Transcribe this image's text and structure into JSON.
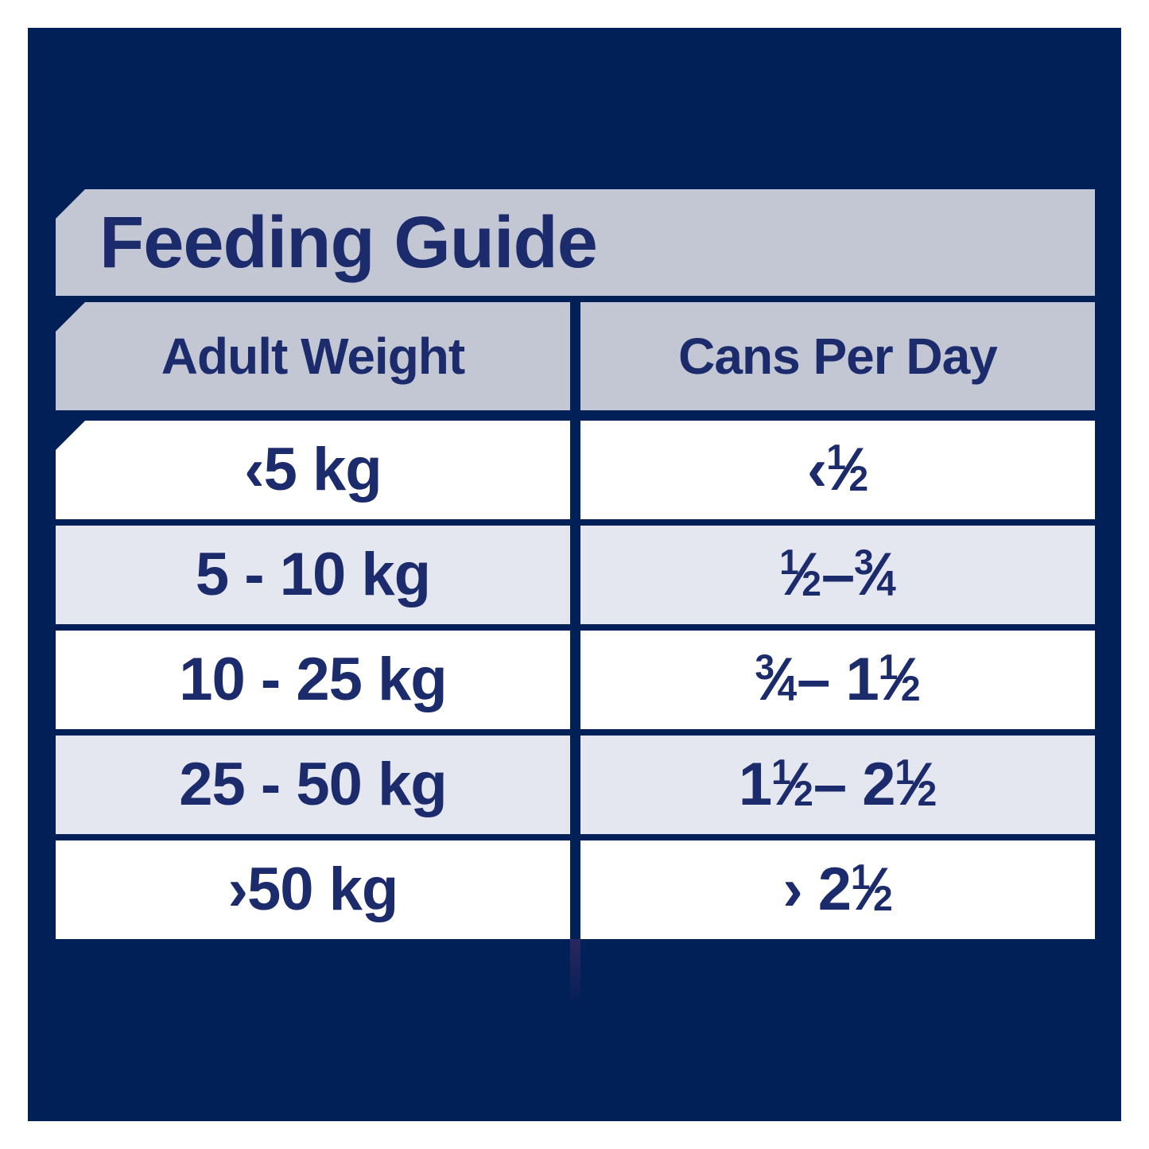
{
  "title": "Feeding Guide",
  "colors": {
    "panel_navy": "#012057",
    "banner_gray": "#c2c7d3",
    "row_white": "#ffffff",
    "row_tint": "#e4e7f0",
    "text_navy": "#1b2b6b"
  },
  "table": {
    "columns": {
      "weight": "Adult Weight",
      "cans": "Cans Per Day"
    },
    "rows": [
      {
        "weight": "‹5 kg",
        "cans": "‹ ½"
      },
      {
        "weight": "5 - 10 kg",
        "cans": "½ – ¾"
      },
      {
        "weight": "10 - 25 kg",
        "cans": "¾ – 1 ½"
      },
      {
        "weight": "25 - 50 kg",
        "cans": "1 ½ – 2 ½"
      },
      {
        "weight": "›50 kg",
        "cans": "› 2 ½"
      }
    ]
  }
}
